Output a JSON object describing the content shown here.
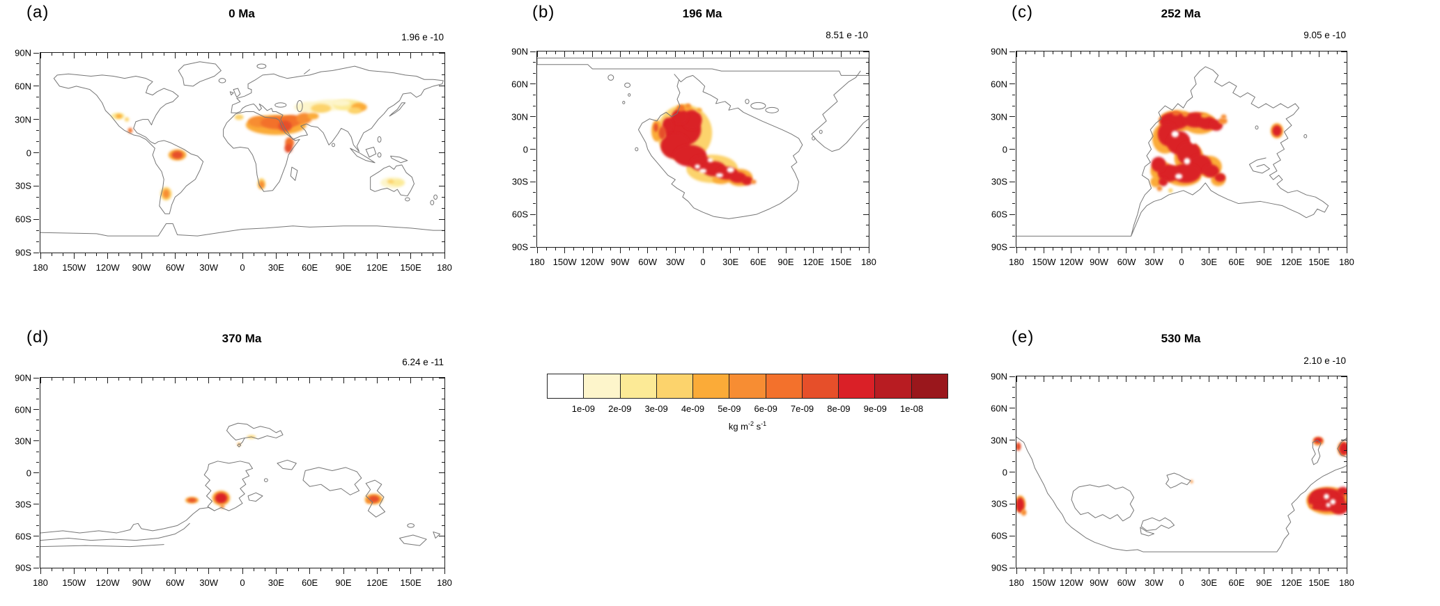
{
  "chart_data": {
    "type": "heatmap",
    "title": "Dust emission flux maps at five geological ages",
    "legend_position": "bottom-center",
    "axes": {
      "x_tick_labels": [
        "180",
        "150W",
        "120W",
        "90W",
        "60W",
        "30W",
        "0",
        "30E",
        "60E",
        "90E",
        "120E",
        "150E",
        "180"
      ],
      "y_tick_labels": [
        "90N",
        "60N",
        "30N",
        "0",
        "30S",
        "60S",
        "90S"
      ],
      "x_range_deg": [
        -180,
        180
      ],
      "y_range_deg": [
        -90,
        90
      ],
      "major_tick_deg": 30,
      "minor_tick_deg": 10
    },
    "colorbar": {
      "tick_labels": [
        "1e-09",
        "2e-09",
        "3e-09",
        "4e-09",
        "5e-09",
        "6e-09",
        "7e-09",
        "8e-09",
        "9e-09",
        "1e-08"
      ],
      "colors": [
        "#ffffff",
        "#fdf5cb",
        "#fcea96",
        "#fcd36c",
        "#fbab38",
        "#f78d33",
        "#f3712c",
        "#e64f2a",
        "#da2027",
        "#b81c22",
        "#9a171c"
      ],
      "unit": {
        "base1": "kg m",
        "exp1": "-2",
        "base2": "s",
        "exp2": "-1"
      }
    },
    "panels": {
      "a": {
        "label": "(a)",
        "title": "0 Ma",
        "max_value": "1.96 e -10",
        "hotspots": [
          [
            60,
            41,
            14,
            5,
            2
          ],
          [
            78,
            43,
            16,
            5,
            2
          ],
          [
            94,
            43,
            13,
            5,
            3
          ],
          [
            88,
            45,
            8,
            3,
            2
          ],
          [
            70,
            40,
            9,
            4,
            4
          ],
          [
            104,
            41,
            7,
            4,
            5
          ],
          [
            100,
            38,
            6,
            3,
            4
          ],
          [
            30,
            25,
            27,
            9,
            5
          ],
          [
            15,
            28,
            10,
            5,
            6
          ],
          [
            32,
            27,
            16,
            6,
            7
          ],
          [
            44,
            29,
            9,
            5,
            7
          ],
          [
            38,
            24,
            6,
            5,
            8
          ],
          [
            55,
            31,
            7,
            5,
            6
          ],
          [
            63,
            33,
            5,
            3,
            5
          ],
          [
            -3,
            32,
            4,
            2.5,
            4
          ],
          [
            42,
            9,
            4,
            5,
            7
          ],
          [
            41,
            4,
            3.5,
            4,
            8
          ],
          [
            -58,
            -2,
            8,
            5,
            5
          ],
          [
            -58,
            -2,
            5,
            3.5,
            8
          ],
          [
            -68,
            -37,
            5,
            6,
            4
          ],
          [
            -68,
            -37,
            3,
            4,
            6
          ],
          [
            17,
            -28,
            3.5,
            5,
            4
          ],
          [
            17,
            -29,
            2.5,
            3.5,
            6
          ],
          [
            134,
            -27,
            11,
            5,
            2
          ],
          [
            138,
            -27,
            6,
            3,
            3
          ],
          [
            132,
            -26,
            3,
            2,
            4
          ],
          [
            -111,
            33,
            6,
            3,
            3
          ],
          [
            -110,
            33,
            3,
            2,
            5
          ],
          [
            -103,
            30,
            2,
            2,
            4
          ],
          [
            -100,
            20,
            2,
            2.5,
            7
          ]
        ]
      },
      "b": {
        "label": "(b)",
        "title": "196 Ma",
        "max_value": "8.51 e -10",
        "hotspots": [
          [
            -20,
            15,
            30,
            26,
            4
          ],
          [
            10,
            -18,
            28,
            13,
            4
          ],
          [
            40,
            -26,
            14,
            8,
            5
          ],
          [
            -20,
            34,
            10,
            7,
            5
          ],
          [
            -50,
            17,
            6,
            10,
            5
          ],
          [
            20,
            -28,
            10,
            4,
            5
          ],
          [
            -22,
            18,
            20,
            15,
            9
          ],
          [
            -12,
            27,
            11,
            9,
            9
          ],
          [
            -30,
            3,
            16,
            12,
            9
          ],
          [
            -14,
            -6,
            18,
            10,
            9
          ],
          [
            -2,
            -13,
            12,
            7,
            9
          ],
          [
            12,
            -18,
            13,
            7,
            9
          ],
          [
            26,
            -22,
            12,
            6,
            9
          ],
          [
            38,
            -26,
            9,
            5,
            9
          ],
          [
            48,
            -29,
            6,
            4,
            9
          ],
          [
            -25,
            30,
            9,
            7,
            9
          ],
          [
            -38,
            22,
            6,
            7,
            9
          ],
          [
            -44,
            15,
            4,
            6,
            8
          ],
          [
            -51,
            20,
            2.5,
            4,
            8
          ],
          [
            -24,
            38,
            4,
            3,
            7
          ],
          [
            -16,
            40,
            3,
            2,
            6
          ],
          [
            -4,
            36,
            3,
            2,
            5
          ],
          [
            55,
            -30,
            3,
            2,
            6
          ],
          [
            0,
            -20,
            4,
            2,
            0
          ],
          [
            18,
            -24,
            4,
            2,
            0
          ],
          [
            -6,
            -16,
            3,
            2,
            0
          ],
          [
            30,
            -19,
            4,
            2.5,
            0
          ],
          [
            8,
            -10,
            3,
            2,
            0
          ]
        ]
      },
      "c": {
        "label": "(c)",
        "title": "252 Ma",
        "max_value": "9.05 e -10",
        "hotspots": [
          [
            -5,
            26,
            20,
            10,
            5
          ],
          [
            20,
            24,
            18,
            10,
            5
          ],
          [
            -18,
            10,
            14,
            14,
            5
          ],
          [
            8,
            -8,
            16,
            14,
            5
          ],
          [
            2,
            -24,
            20,
            10,
            5
          ],
          [
            -22,
            -20,
            12,
            9,
            5
          ],
          [
            30,
            -16,
            14,
            10,
            5
          ],
          [
            40,
            -28,
            8,
            6,
            5
          ],
          [
            -28,
            -30,
            6,
            5,
            5
          ],
          [
            104,
            17,
            7,
            7,
            5
          ],
          [
            -8,
            26,
            16,
            8,
            9
          ],
          [
            15,
            27,
            13,
            7,
            9
          ],
          [
            28,
            24,
            10,
            6,
            9
          ],
          [
            38,
            22,
            7,
            5,
            9
          ],
          [
            -15,
            14,
            11,
            11,
            9
          ],
          [
            -3,
            6,
            13,
            11,
            9
          ],
          [
            8,
            -4,
            13,
            11,
            9
          ],
          [
            20,
            -14,
            13,
            9,
            9
          ],
          [
            5,
            -22,
            16,
            9,
            9
          ],
          [
            -14,
            -22,
            12,
            8,
            9
          ],
          [
            -25,
            -14,
            8,
            7,
            9
          ],
          [
            32,
            -20,
            9,
            6,
            9
          ],
          [
            42,
            -26,
            6,
            4,
            9
          ],
          [
            -20,
            -30,
            5,
            4,
            9
          ],
          [
            104,
            17,
            5,
            5,
            9
          ],
          [
            -6,
            33,
            4,
            2,
            7
          ],
          [
            4,
            32,
            3,
            2,
            6
          ],
          [
            25,
            31,
            4,
            2,
            5
          ],
          [
            45,
            26,
            5,
            3,
            6
          ],
          [
            46,
            30,
            3,
            2,
            6
          ],
          [
            -24,
            -36,
            3,
            2.5,
            6
          ],
          [
            -12,
            -38,
            2.5,
            2,
            4
          ],
          [
            -7,
            14,
            4,
            3,
            0
          ],
          [
            6,
            -11,
            3.5,
            3,
            0
          ],
          [
            -3,
            -25,
            4,
            2.5,
            0
          ],
          [
            13,
            8,
            3,
            3,
            0
          ]
        ]
      },
      "d": {
        "label": "(d)",
        "title": "370 Ma",
        "max_value": "6.24 e -11",
        "hotspots": [
          [
            -45,
            -26,
            6,
            3,
            5
          ],
          [
            -45,
            -26,
            4,
            2,
            8
          ],
          [
            -19,
            -24,
            8,
            7,
            5
          ],
          [
            -19,
            -24,
            5.5,
            5,
            9
          ],
          [
            -18,
            -32,
            2,
            2,
            6
          ],
          [
            117,
            -25,
            8,
            5,
            5
          ],
          [
            117,
            -25,
            5,
            3.5,
            8
          ],
          [
            112,
            -27,
            2,
            2,
            6
          ],
          [
            8,
            34,
            4,
            1.5,
            4
          ],
          [
            -3,
            27,
            1.5,
            1.5,
            5
          ]
        ]
      },
      "e": {
        "label": "(e)",
        "title": "530 Ma",
        "max_value": "2.10 e -10",
        "hotspots": [
          [
            -178,
            24,
            3,
            4,
            8
          ],
          [
            -176,
            -30,
            6,
            8,
            5
          ],
          [
            -176,
            -31,
            4.5,
            7,
            9
          ],
          [
            -172,
            -38,
            3,
            3,
            6
          ],
          [
            11,
            -9,
            1.5,
            1.5,
            6
          ],
          [
            160,
            -27,
            24,
            13,
            5
          ],
          [
            158,
            -26,
            20,
            11,
            9
          ],
          [
            172,
            -33,
            10,
            7,
            9
          ],
          [
            146,
            -30,
            6,
            5,
            9
          ],
          [
            150,
            -22,
            8,
            5,
            9
          ],
          [
            176,
            -18,
            6,
            4,
            9
          ],
          [
            158,
            -23,
            3,
            2.5,
            0
          ],
          [
            165,
            -28,
            3,
            2.5,
            0
          ],
          [
            160,
            -31,
            2.5,
            2,
            0
          ],
          [
            141,
            -32,
            2,
            2,
            6
          ],
          [
            149,
            29,
            6,
            4,
            6
          ],
          [
            149,
            30,
            4.5,
            2.5,
            9
          ],
          [
            176,
            22,
            6,
            7,
            6
          ],
          [
            177,
            22,
            5,
            6,
            9
          ]
        ]
      }
    }
  }
}
